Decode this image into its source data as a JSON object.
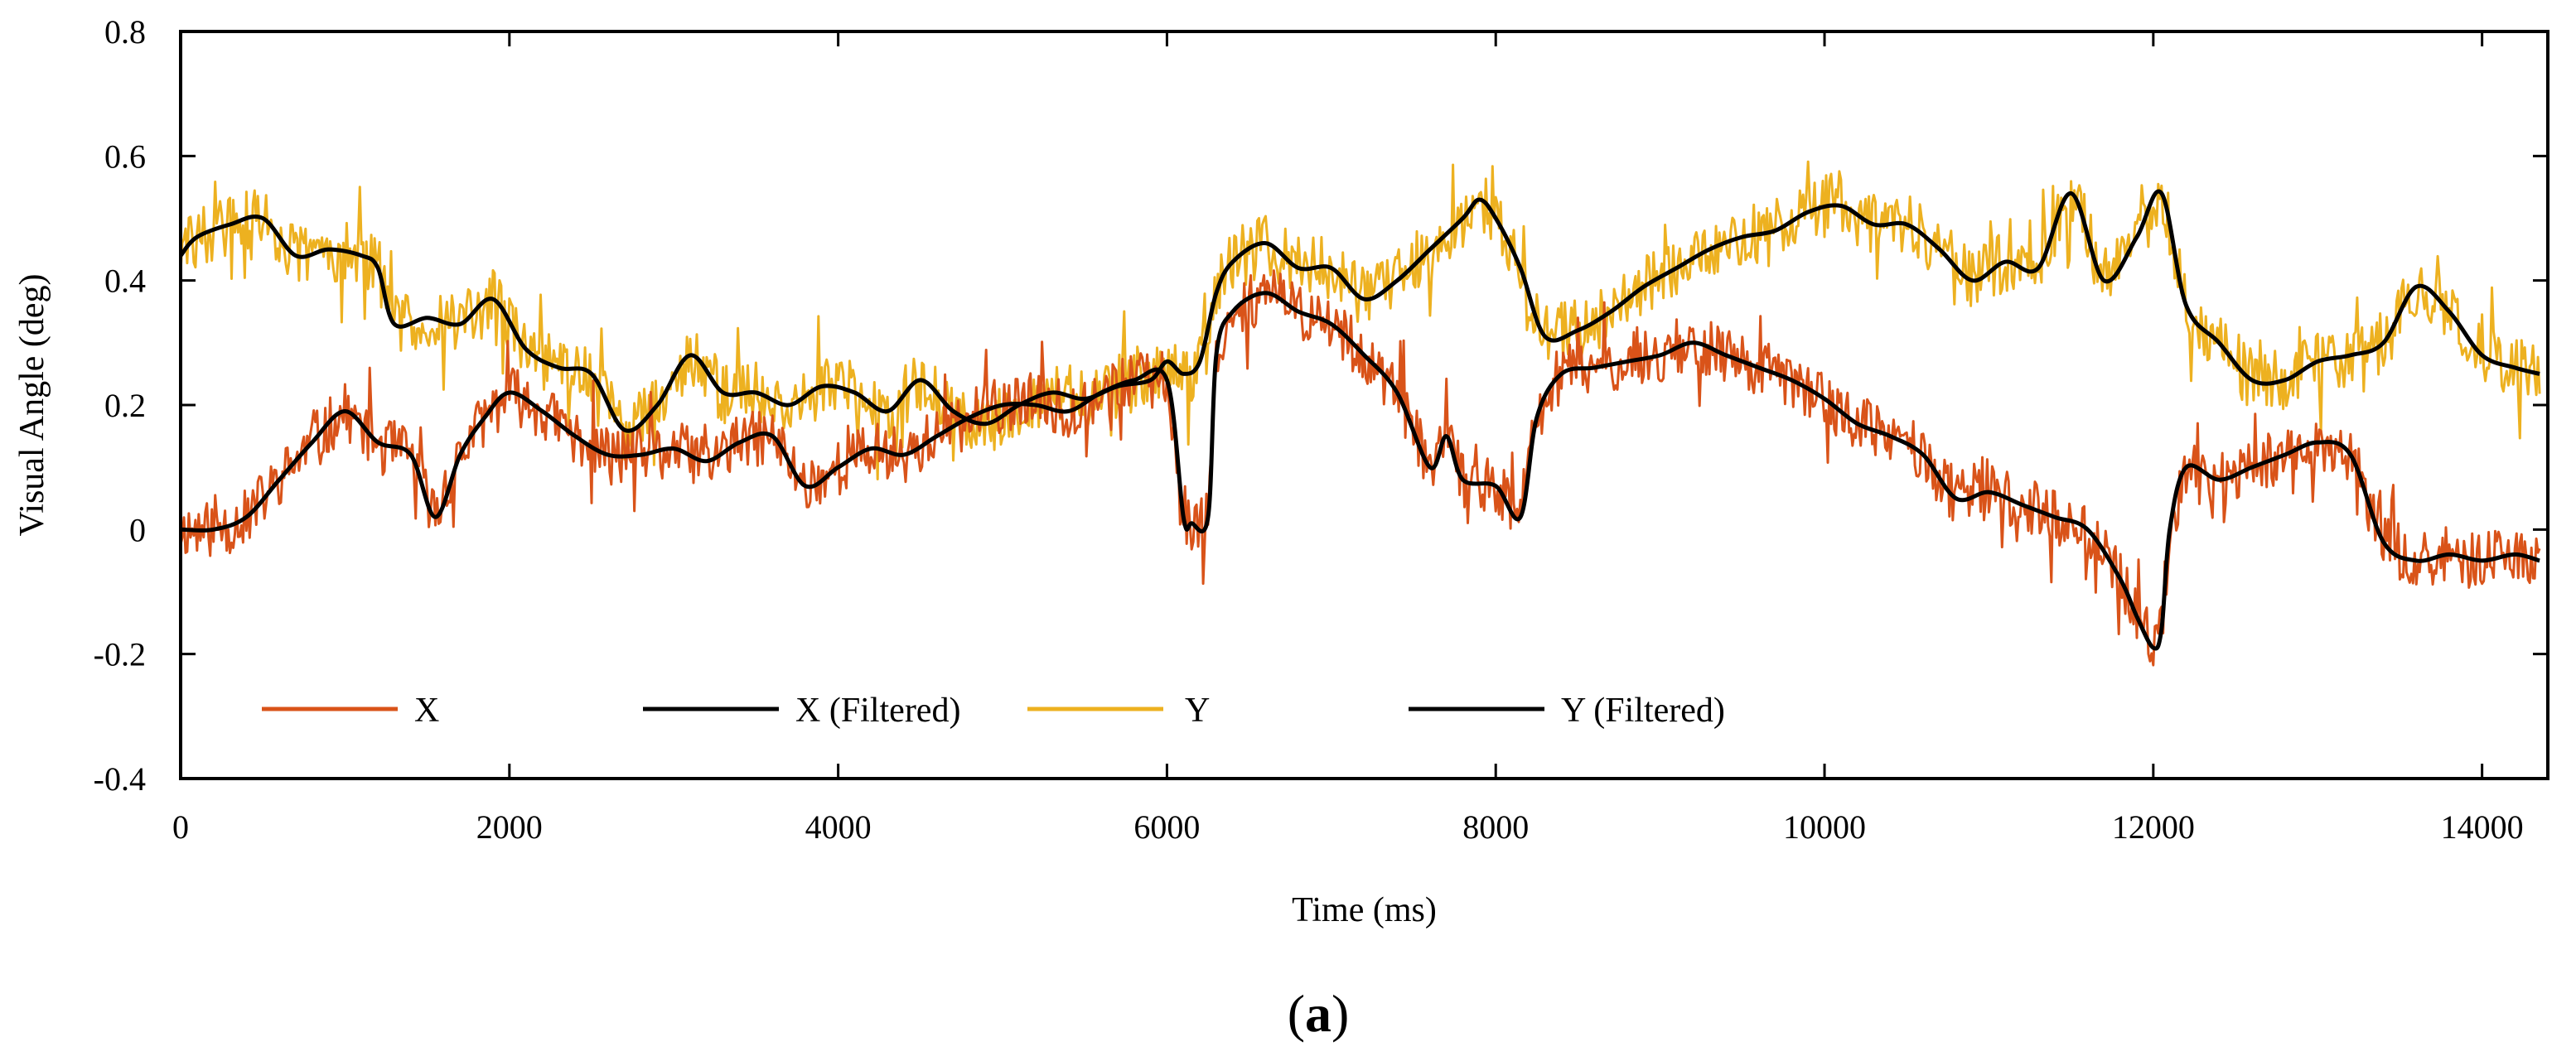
{
  "chart_data": {
    "type": "line",
    "title": "",
    "xlabel": "Time (ms)",
    "ylabel": "Visual Angle (deg)",
    "xlim": [
      0,
      14400
    ],
    "ylim": [
      -0.4,
      0.8
    ],
    "x_ticks": [
      0,
      2000,
      4000,
      6000,
      8000,
      10000,
      12000,
      14000
    ],
    "y_ticks": [
      -0.4,
      -0.2,
      0,
      0.2,
      0.4,
      0.6,
      0.8
    ],
    "y_tick_labels": [
      "-0.4",
      "-0.2",
      "0",
      "0.2",
      "0.4",
      "0.6",
      "0.8"
    ],
    "x_tick_labels": [
      "0",
      "2000",
      "4000",
      "6000",
      "8000",
      "10000",
      "12000",
      "14000"
    ],
    "grid": false,
    "legend_position": "bottom-left inside",
    "series": [
      {
        "name": "X",
        "color": "#d95319",
        "noisy": true,
        "noise_amplitude": 0.045,
        "x": [
          0,
          200,
          400,
          600,
          800,
          1000,
          1200,
          1400,
          1550,
          1700,
          1850,
          2000,
          2200,
          2400,
          2600,
          2800,
          3000,
          3200,
          3400,
          3600,
          3800,
          4000,
          4200,
          4400,
          4600,
          4800,
          5000,
          5200,
          5400,
          5600,
          5800,
          6000,
          6100,
          6150,
          6250,
          6300,
          6400,
          6600,
          6800,
          7000,
          7200,
          7400,
          7600,
          7700,
          7800,
          8000,
          8150,
          8250,
          8400,
          8600,
          8800,
          9000,
          9200,
          9400,
          9600,
          9800,
          10000,
          10200,
          10400,
          10600,
          10800,
          11000,
          11200,
          11400,
          11600,
          11800,
          11900,
          12000,
          12050,
          12100,
          12200,
          12400,
          12600,
          12800,
          13000,
          13200,
          13400,
          13600,
          13800,
          14000,
          14200,
          14350
        ],
        "values": [
          0.0,
          0.0,
          0.02,
          0.08,
          0.14,
          0.19,
          0.14,
          0.12,
          0.02,
          0.12,
          0.18,
          0.22,
          0.19,
          0.15,
          0.12,
          0.12,
          0.13,
          0.11,
          0.14,
          0.15,
          0.07,
          0.1,
          0.13,
          0.12,
          0.15,
          0.18,
          0.2,
          0.2,
          0.19,
          0.22,
          0.24,
          0.24,
          0.02,
          0.01,
          0.02,
          0.28,
          0.35,
          0.38,
          0.35,
          0.33,
          0.28,
          0.22,
          0.1,
          0.15,
          0.08,
          0.07,
          0.02,
          0.18,
          0.25,
          0.26,
          0.27,
          0.28,
          0.3,
          0.28,
          0.26,
          0.24,
          0.21,
          0.17,
          0.15,
          0.12,
          0.05,
          0.06,
          0.04,
          0.02,
          0.0,
          -0.08,
          -0.14,
          -0.19,
          -0.16,
          0.0,
          0.1,
          0.08,
          0.1,
          0.12,
          0.14,
          0.12,
          -0.02,
          -0.05,
          -0.04,
          -0.05,
          -0.04,
          -0.05
        ],
        "noise_seed": 11
      },
      {
        "name": "X (Filtered)",
        "color": "#000000",
        "noisy": false,
        "x": [
          0,
          200,
          400,
          600,
          800,
          1000,
          1200,
          1400,
          1550,
          1700,
          1850,
          2000,
          2200,
          2400,
          2600,
          2800,
          3000,
          3200,
          3400,
          3600,
          3800,
          4000,
          4200,
          4400,
          4600,
          4800,
          5000,
          5200,
          5400,
          5600,
          5800,
          6000,
          6100,
          6150,
          6250,
          6300,
          6400,
          6600,
          6800,
          7000,
          7200,
          7400,
          7600,
          7700,
          7800,
          8000,
          8150,
          8250,
          8400,
          8600,
          8800,
          9000,
          9200,
          9400,
          9600,
          9800,
          10000,
          10200,
          10400,
          10600,
          10800,
          11000,
          11200,
          11400,
          11600,
          11800,
          11900,
          12000,
          12050,
          12100,
          12200,
          12400,
          12600,
          12800,
          13000,
          13200,
          13400,
          13600,
          13800,
          14000,
          14200,
          14350
        ],
        "values": [
          0.0,
          0.0,
          0.02,
          0.08,
          0.14,
          0.19,
          0.14,
          0.12,
          0.02,
          0.12,
          0.18,
          0.22,
          0.19,
          0.15,
          0.12,
          0.12,
          0.13,
          0.11,
          0.14,
          0.15,
          0.07,
          0.1,
          0.13,
          0.12,
          0.15,
          0.18,
          0.2,
          0.2,
          0.19,
          0.22,
          0.24,
          0.24,
          0.02,
          0.01,
          0.02,
          0.28,
          0.35,
          0.38,
          0.35,
          0.33,
          0.28,
          0.22,
          0.1,
          0.15,
          0.08,
          0.07,
          0.02,
          0.18,
          0.25,
          0.26,
          0.27,
          0.28,
          0.3,
          0.28,
          0.26,
          0.24,
          0.21,
          0.17,
          0.15,
          0.12,
          0.05,
          0.06,
          0.04,
          0.02,
          0.0,
          -0.08,
          -0.14,
          -0.19,
          -0.16,
          0.0,
          0.1,
          0.08,
          0.1,
          0.12,
          0.14,
          0.12,
          -0.02,
          -0.05,
          -0.04,
          -0.05,
          -0.04,
          -0.05
        ],
        "noise_seed": 0
      },
      {
        "name": "Y",
        "color": "#edb120",
        "noisy": true,
        "noise_amplitude": 0.05,
        "x": [
          0,
          100,
          300,
          500,
          700,
          900,
          1100,
          1200,
          1300,
          1500,
          1700,
          1900,
          2100,
          2300,
          2500,
          2700,
          2900,
          3100,
          3300,
          3500,
          3700,
          3900,
          4100,
          4300,
          4500,
          4700,
          4900,
          5100,
          5300,
          5500,
          5700,
          5900,
          6000,
          6100,
          6200,
          6300,
          6400,
          6600,
          6800,
          7000,
          7200,
          7400,
          7600,
          7800,
          7900,
          8000,
          8150,
          8300,
          8500,
          8700,
          8900,
          9100,
          9300,
          9500,
          9700,
          9900,
          10100,
          10300,
          10500,
          10700,
          10900,
          11100,
          11300,
          11500,
          11700,
          11900,
          12050,
          12200,
          12400,
          12600,
          12800,
          13000,
          13200,
          13400,
          13600,
          13800,
          14000,
          14200,
          14350
        ],
        "values": [
          0.44,
          0.47,
          0.49,
          0.5,
          0.44,
          0.45,
          0.44,
          0.42,
          0.33,
          0.34,
          0.33,
          0.37,
          0.29,
          0.26,
          0.25,
          0.16,
          0.2,
          0.28,
          0.22,
          0.22,
          0.2,
          0.23,
          0.22,
          0.19,
          0.24,
          0.19,
          0.17,
          0.2,
          0.22,
          0.21,
          0.23,
          0.24,
          0.27,
          0.25,
          0.27,
          0.38,
          0.43,
          0.46,
          0.42,
          0.42,
          0.37,
          0.4,
          0.45,
          0.5,
          0.53,
          0.5,
          0.42,
          0.31,
          0.32,
          0.35,
          0.39,
          0.42,
          0.45,
          0.47,
          0.48,
          0.51,
          0.52,
          0.49,
          0.49,
          0.45,
          0.4,
          0.43,
          0.42,
          0.54,
          0.4,
          0.47,
          0.54,
          0.36,
          0.3,
          0.24,
          0.24,
          0.27,
          0.28,
          0.3,
          0.39,
          0.35,
          0.28,
          0.26,
          0.25
        ],
        "noise_seed": 29
      },
      {
        "name": "Y (Filtered)",
        "color": "#000000",
        "noisy": false,
        "x": [
          0,
          100,
          300,
          500,
          700,
          900,
          1100,
          1200,
          1300,
          1500,
          1700,
          1900,
          2100,
          2300,
          2500,
          2700,
          2900,
          3100,
          3300,
          3500,
          3700,
          3900,
          4100,
          4300,
          4500,
          4700,
          4900,
          5100,
          5300,
          5500,
          5700,
          5900,
          6000,
          6100,
          6200,
          6300,
          6400,
          6600,
          6800,
          7000,
          7200,
          7400,
          7600,
          7800,
          7900,
          8000,
          8150,
          8300,
          8500,
          8700,
          8900,
          9100,
          9300,
          9500,
          9700,
          9900,
          10100,
          10300,
          10500,
          10700,
          10900,
          11100,
          11300,
          11500,
          11700,
          11900,
          12050,
          12200,
          12400,
          12600,
          12800,
          13000,
          13200,
          13400,
          13600,
          13800,
          14000,
          14200,
          14350
        ],
        "values": [
          0.44,
          0.47,
          0.49,
          0.5,
          0.44,
          0.45,
          0.44,
          0.42,
          0.33,
          0.34,
          0.33,
          0.37,
          0.29,
          0.26,
          0.25,
          0.16,
          0.2,
          0.28,
          0.22,
          0.22,
          0.2,
          0.23,
          0.22,
          0.19,
          0.24,
          0.19,
          0.17,
          0.2,
          0.22,
          0.21,
          0.23,
          0.24,
          0.27,
          0.25,
          0.27,
          0.38,
          0.43,
          0.46,
          0.42,
          0.42,
          0.37,
          0.4,
          0.45,
          0.5,
          0.53,
          0.5,
          0.42,
          0.31,
          0.32,
          0.35,
          0.39,
          0.42,
          0.45,
          0.47,
          0.48,
          0.51,
          0.52,
          0.49,
          0.49,
          0.45,
          0.4,
          0.43,
          0.42,
          0.54,
          0.4,
          0.47,
          0.54,
          0.36,
          0.3,
          0.24,
          0.24,
          0.27,
          0.28,
          0.3,
          0.39,
          0.35,
          0.28,
          0.26,
          0.25
        ],
        "noise_seed": 0
      }
    ],
    "legend": [
      "X",
      "X (Filtered)",
      "Y",
      "Y (Filtered)"
    ]
  },
  "caption": {
    "open": "(",
    "letter": "a",
    "close": ")"
  }
}
